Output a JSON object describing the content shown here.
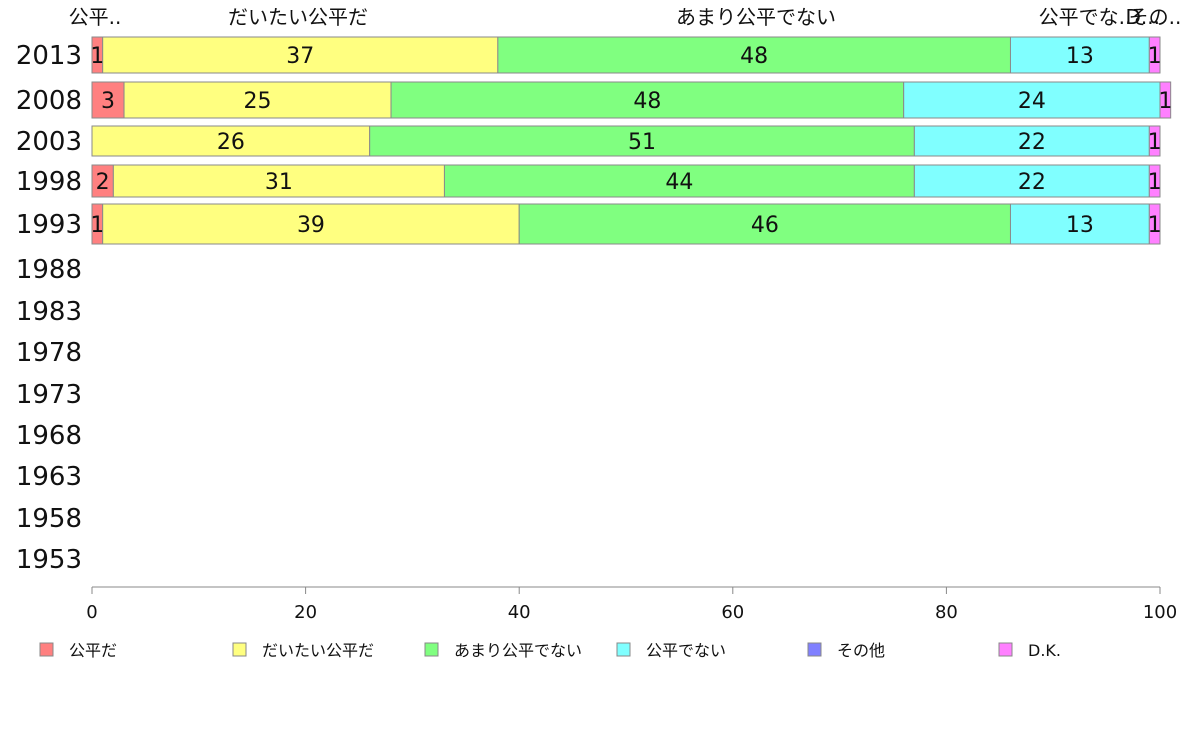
{
  "chart_data": {
    "type": "bar",
    "orientation": "horizontal",
    "stacked": true,
    "categories": [
      "2013",
      "2008",
      "2003",
      "1998",
      "1993",
      "1988",
      "1983",
      "1978",
      "1973",
      "1968",
      "1963",
      "1958",
      "1953"
    ],
    "series": [
      {
        "name": "公平だ",
        "color": "#ff8080",
        "values": [
          1,
          3,
          0,
          2,
          1,
          null,
          null,
          null,
          null,
          null,
          null,
          null,
          null
        ]
      },
      {
        "name": "だいたい公平だ",
        "color": "#ffff80",
        "values": [
          37,
          25,
          26,
          31,
          39,
          null,
          null,
          null,
          null,
          null,
          null,
          null,
          null
        ]
      },
      {
        "name": "あまり公平でない",
        "color": "#80ff80",
        "values": [
          48,
          48,
          51,
          44,
          46,
          null,
          null,
          null,
          null,
          null,
          null,
          null,
          null
        ]
      },
      {
        "name": "公平でない",
        "color": "#80ffff",
        "values": [
          13,
          24,
          22,
          22,
          13,
          null,
          null,
          null,
          null,
          null,
          null,
          null,
          null
        ]
      },
      {
        "name": "その他",
        "color": "#8080ff",
        "values": [
          0,
          0,
          0,
          0,
          0,
          null,
          null,
          null,
          null,
          null,
          null,
          null,
          null
        ]
      },
      {
        "name": "D.K.",
        "color": "#ff80ff",
        "values": [
          1,
          1,
          1,
          1,
          1,
          null,
          null,
          null,
          null,
          null,
          null,
          null,
          null
        ]
      }
    ],
    "top_labels": [
      "公平..",
      "だいたい公平だ",
      "あまり公平でない",
      "公平でな..",
      "その..",
      "D..."
    ],
    "xlim": [
      0,
      100
    ],
    "xticks": [
      "0",
      "20",
      "40",
      "60",
      "80",
      "100"
    ],
    "legend_position": "bottom",
    "grid": false
  }
}
